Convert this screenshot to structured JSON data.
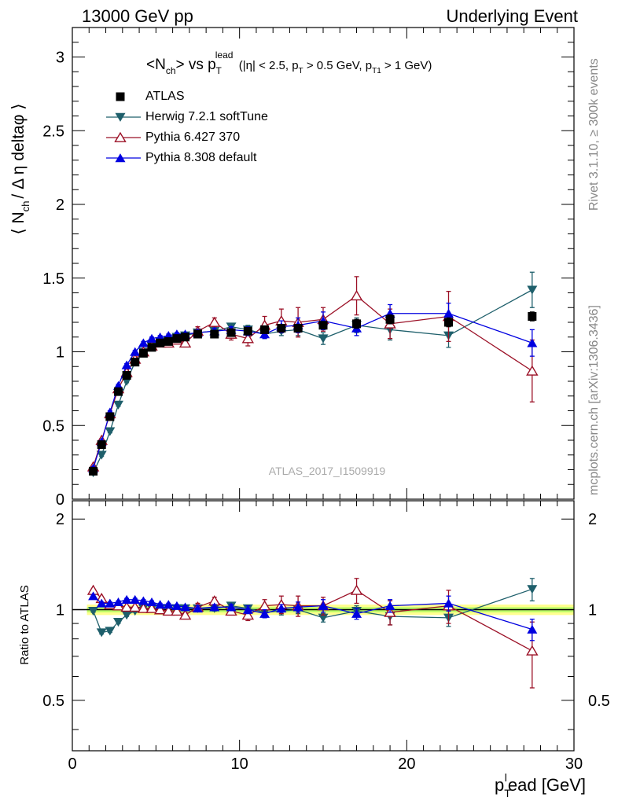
{
  "header": {
    "left": "13000 GeV pp",
    "right": "Underlying Event"
  },
  "side_labels": {
    "rivet": "Rivet 3.1.10, ≥ 300k events",
    "mcplots": "mcplots.cern.ch [arXiv:1306.3436]"
  },
  "colors": {
    "atlas": "#000000",
    "herwig": "#1e5f6b",
    "pythia6": "#9b1026",
    "pythia8": "#0000e0",
    "band_inner": "#bfff6a",
    "band_outer": "#ffff90"
  },
  "chart_data": [
    {
      "type": "line",
      "title": "<N_ch> vs p_T^lead (|η| < 2.5, p_T > 0.5 GeV, p_T1 > 1 GeV)",
      "title_parts": {
        "main": "<N",
        "main_sub": "ch",
        "mid": "> vs p",
        "p_sup": "lead",
        "p_sub": "T",
        "cond_a": "(|η| < 2.5, p",
        "cond_a_sub": "T",
        "cond_b": " > 0.5 GeV, p",
        "cond_b_sub": "T1",
        "cond_c": " > 1 GeV)"
      },
      "ylabel": "⟨ N_ch / Δη deltaφ ⟩",
      "ylabel_parts": {
        "a": "⟨ N",
        "sub": "ch",
        "b": "/ Δ η deltaφ ⟩"
      },
      "watermark": "ATLAS_2017_I1509919",
      "xlim": [
        0,
        30
      ],
      "ylim": [
        0,
        3.2
      ],
      "y_ticks": [
        "0",
        "0.5",
        "1",
        "1.5",
        "2",
        "2.5",
        "3"
      ],
      "legend": [
        "ATLAS",
        "Herwig 7.2.1 softTune",
        "Pythia 6.427 370",
        "Pythia 8.308 default"
      ],
      "legend_position": "top-left",
      "x": [
        1.25,
        1.75,
        2.25,
        2.75,
        3.25,
        3.75,
        4.25,
        4.75,
        5.25,
        5.75,
        6.25,
        6.75,
        7.5,
        8.5,
        9.5,
        10.5,
        11.5,
        12.5,
        13.5,
        15.0,
        17.0,
        19.0,
        22.5,
        27.5
      ],
      "series": [
        {
          "name": "ATLAS",
          "marker": "square",
          "values": [
            0.19,
            0.37,
            0.56,
            0.73,
            0.84,
            0.93,
            0.99,
            1.03,
            1.06,
            1.07,
            1.09,
            1.1,
            1.12,
            1.12,
            1.13,
            1.14,
            1.15,
            1.16,
            1.16,
            1.18,
            1.19,
            1.22,
            1.2,
            1.24
          ],
          "errors": [
            0.01,
            0.01,
            0.01,
            0.01,
            0.01,
            0.01,
            0.01,
            0.01,
            0.01,
            0.01,
            0.01,
            0.01,
            0.01,
            0.01,
            0.01,
            0.01,
            0.02,
            0.02,
            0.02,
            0.02,
            0.03,
            0.03,
            0.03,
            0.03
          ]
        },
        {
          "name": "Herwig 7.2.1 softTune",
          "marker": "triangle-down",
          "values": [
            0.18,
            0.3,
            0.46,
            0.64,
            0.8,
            0.93,
            1.0,
            1.04,
            1.07,
            1.08,
            1.1,
            1.11,
            1.13,
            1.14,
            1.17,
            1.15,
            1.12,
            1.14,
            1.15,
            1.09,
            1.18,
            1.15,
            1.11,
            1.42
          ],
          "errors": [
            0.01,
            0.01,
            0.01,
            0.01,
            0.01,
            0.01,
            0.01,
            0.01,
            0.01,
            0.01,
            0.01,
            0.01,
            0.02,
            0.02,
            0.02,
            0.03,
            0.03,
            0.03,
            0.04,
            0.04,
            0.05,
            0.07,
            0.08,
            0.12
          ]
        },
        {
          "name": "Pythia 6.427 370",
          "marker": "triangle-up-open",
          "values": [
            0.22,
            0.4,
            0.58,
            0.75,
            0.86,
            0.95,
            1.0,
            1.04,
            1.06,
            1.06,
            1.08,
            1.06,
            1.14,
            1.2,
            1.12,
            1.09,
            1.18,
            1.21,
            1.2,
            1.22,
            1.38,
            1.19,
            1.24,
            0.87
          ],
          "errors": [
            0.01,
            0.01,
            0.01,
            0.01,
            0.01,
            0.01,
            0.01,
            0.01,
            0.01,
            0.01,
            0.01,
            0.02,
            0.03,
            0.03,
            0.04,
            0.05,
            0.06,
            0.08,
            0.1,
            0.08,
            0.13,
            0.1,
            0.17,
            0.21
          ]
        },
        {
          "name": "Pythia 8.308 default",
          "marker": "triangle-up",
          "values": [
            0.21,
            0.39,
            0.59,
            0.77,
            0.91,
            1.0,
            1.06,
            1.09,
            1.1,
            1.11,
            1.12,
            1.12,
            1.13,
            1.14,
            1.15,
            1.14,
            1.12,
            1.17,
            1.18,
            1.21,
            1.16,
            1.26,
            1.26,
            1.06
          ],
          "errors": [
            0.01,
            0.01,
            0.01,
            0.01,
            0.01,
            0.01,
            0.01,
            0.01,
            0.01,
            0.01,
            0.01,
            0.01,
            0.02,
            0.02,
            0.02,
            0.03,
            0.03,
            0.04,
            0.05,
            0.06,
            0.05,
            0.06,
            0.07,
            0.09
          ]
        }
      ]
    },
    {
      "type": "line",
      "ylabel": "Ratio to ATLAS",
      "xlabel": "p_T^lead [GeV]",
      "xlabel_parts": {
        "a": "p",
        "sub": "T",
        "sup": "l",
        "b": "ead [GeV]"
      },
      "xlim": [
        0,
        30
      ],
      "ylim": [
        0.34,
        2.3
      ],
      "x_ticks": [
        "0",
        "10",
        "20",
        "30"
      ],
      "y_ticks": [
        "0.5",
        "1",
        "2"
      ],
      "reference_band": {
        "inner": 0.02,
        "outer": 0.04
      },
      "x": [
        1.25,
        1.75,
        2.25,
        2.75,
        3.25,
        3.75,
        4.25,
        4.75,
        5.25,
        5.75,
        6.25,
        6.75,
        7.5,
        8.5,
        9.5,
        10.5,
        11.5,
        12.5,
        13.5,
        15.0,
        17.0,
        19.0,
        22.5,
        27.5
      ],
      "series": [
        {
          "name": "Herwig 7.2.1 softTune",
          "marker": "triangle-down",
          "values": [
            0.99,
            0.84,
            0.85,
            0.91,
            0.96,
            0.99,
            1.01,
            1.01,
            1.01,
            1.01,
            1.01,
            1.01,
            1.01,
            1.01,
            1.03,
            1.01,
            0.98,
            0.99,
            1.0,
            0.94,
            0.99,
            0.95,
            0.94,
            1.17
          ],
          "errors": [
            0.01,
            0.01,
            0.01,
            0.01,
            0.01,
            0.01,
            0.01,
            0.01,
            0.01,
            0.01,
            0.01,
            0.01,
            0.02,
            0.02,
            0.02,
            0.02,
            0.02,
            0.03,
            0.03,
            0.03,
            0.04,
            0.06,
            0.06,
            0.1
          ]
        },
        {
          "name": "Pythia 6.427 370",
          "marker": "triangle-up-open",
          "values": [
            1.16,
            1.09,
            1.04,
            1.03,
            1.02,
            1.02,
            1.01,
            1.01,
            1.0,
            0.99,
            0.99,
            0.96,
            1.02,
            1.07,
            0.99,
            0.96,
            1.03,
            1.04,
            1.03,
            1.03,
            1.16,
            0.98,
            1.03,
            0.73
          ],
          "errors": [
            0.01,
            0.01,
            0.01,
            0.01,
            0.01,
            0.01,
            0.01,
            0.01,
            0.01,
            0.01,
            0.01,
            0.02,
            0.03,
            0.03,
            0.03,
            0.04,
            0.05,
            0.07,
            0.08,
            0.07,
            0.11,
            0.09,
            0.13,
            0.18
          ]
        },
        {
          "name": "Pythia 8.308 default",
          "marker": "triangle-up",
          "values": [
            1.11,
            1.05,
            1.05,
            1.06,
            1.08,
            1.08,
            1.07,
            1.06,
            1.04,
            1.04,
            1.03,
            1.02,
            1.01,
            1.02,
            1.02,
            1.0,
            0.97,
            1.01,
            1.02,
            1.03,
            0.97,
            1.03,
            1.05,
            0.86
          ],
          "errors": [
            0.01,
            0.01,
            0.01,
            0.01,
            0.01,
            0.01,
            0.01,
            0.01,
            0.01,
            0.01,
            0.01,
            0.01,
            0.02,
            0.02,
            0.02,
            0.03,
            0.03,
            0.03,
            0.04,
            0.05,
            0.04,
            0.05,
            0.06,
            0.07
          ]
        }
      ]
    }
  ]
}
